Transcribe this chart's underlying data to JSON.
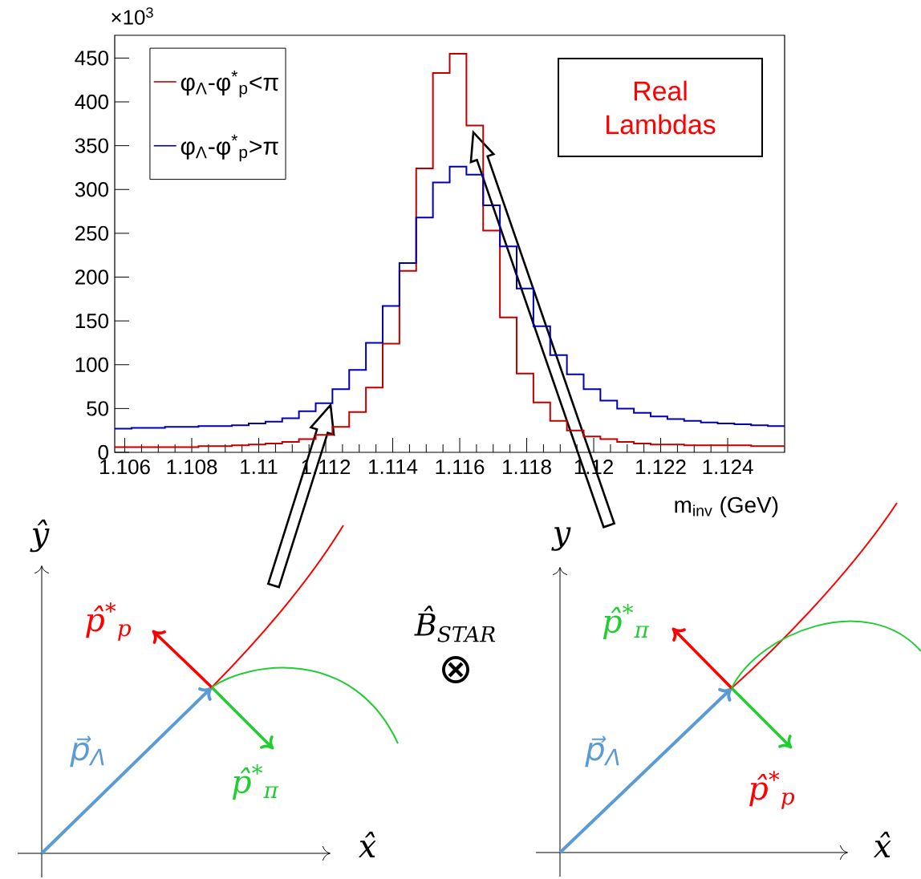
{
  "chart_data": {
    "type": "histogram",
    "xlabel": "m$_{inv}$ (GeV)",
    "bins": [
      1.1057,
      1.1062,
      1.1067,
      1.1072,
      1.1077,
      1.1082,
      1.1087,
      1.1092,
      1.1097,
      1.1102,
      1.1107,
      1.1112,
      1.1117,
      1.1122,
      1.1127,
      1.1132,
      1.1137,
      1.1142,
      1.1147,
      1.1152,
      1.1157,
      1.1162,
      1.1167,
      1.1172,
      1.1177,
      1.1182,
      1.1187,
      1.1192,
      1.1197,
      1.1202,
      1.1207,
      1.1212,
      1.1217,
      1.1222,
      1.1227,
      1.1232,
      1.1237,
      1.1242,
      1.1247,
      1.1252,
      1.1257
    ],
    "series": [
      {
        "name": "φ$_{Λ}$-φ$^{*}$$_{p}$<π",
        "color": "#c00000",
        "values": [
          6,
          6,
          6,
          6,
          6,
          7,
          7,
          8,
          9,
          10,
          12,
          15,
          20,
          29,
          46,
          74,
          124,
          207,
          324,
          433,
          455,
          373,
          253,
          154,
          90,
          57,
          36,
          25,
          18,
          15,
          12,
          10,
          9,
          9,
          8,
          8,
          8,
          8,
          7,
          7
        ]
      },
      {
        "name": "φ$_{Λ}$-φ$^{*}$$_{p}$>π",
        "color": "#0000b0",
        "values": [
          27,
          28,
          28,
          29,
          29,
          30,
          30,
          31,
          33,
          35,
          39,
          47,
          56,
          72,
          94,
          125,
          167,
          216,
          268,
          308,
          326,
          317,
          282,
          235,
          187,
          144,
          111,
          89,
          72,
          59,
          50,
          45,
          41,
          38,
          36,
          34,
          33,
          32,
          31,
          30
        ]
      }
    ],
    "xlim": [
      1.1057,
      1.1257
    ],
    "ylim": [
      0,
      476
    ],
    "xticks": [
      1.106,
      1.108,
      1.11,
      1.112,
      1.114,
      1.116,
      1.118,
      1.12,
      1.122,
      1.124
    ],
    "yticks": [
      0,
      50,
      100,
      150,
      200,
      250,
      300,
      350,
      400,
      450
    ],
    "legend": "top left",
    "annotations": [
      "×10$^{3}$",
      "Real Lambdas",
      "ŷ",
      "p̂$^{*}$$_{p}$",
      "p⃗$_{Λ}$",
      "p̂$^{*}$$_{π}$",
      "x̂",
      "B̂$_{STAR}$",
      "⊗",
      "y",
      "p̂$^{*}$$_{π}$",
      "p⃗$_{Λ}$",
      "p̂$^{*}$$_{p}$",
      "x̂"
    ]
  }
}
